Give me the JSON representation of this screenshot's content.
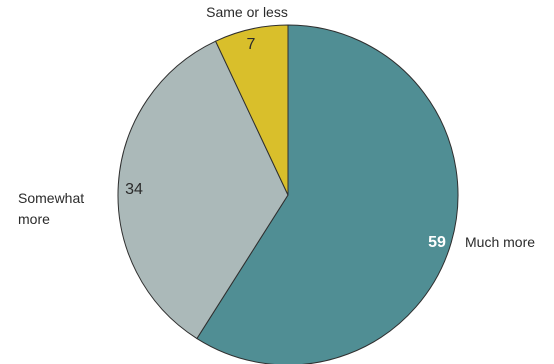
{
  "chart_data": {
    "type": "pie",
    "title": "",
    "start_angle_deg": 0,
    "direction": "clockwise",
    "slices": [
      {
        "label": "Much more",
        "value": 59,
        "value_label": "59",
        "color": "#508e94",
        "label_lines": [
          "Much more"
        ],
        "value_style": "bold-white"
      },
      {
        "label": "Somewhat more",
        "value": 34,
        "value_label": "34",
        "color": "#abb9b9",
        "label_lines": [
          "Somewhat",
          "more"
        ],
        "value_style": "dark"
      },
      {
        "label": "Same or less",
        "value": 7,
        "value_label": "7",
        "color": "#d9bf2b",
        "label_lines": [
          "Same or less"
        ],
        "value_style": "dark"
      }
    ]
  }
}
